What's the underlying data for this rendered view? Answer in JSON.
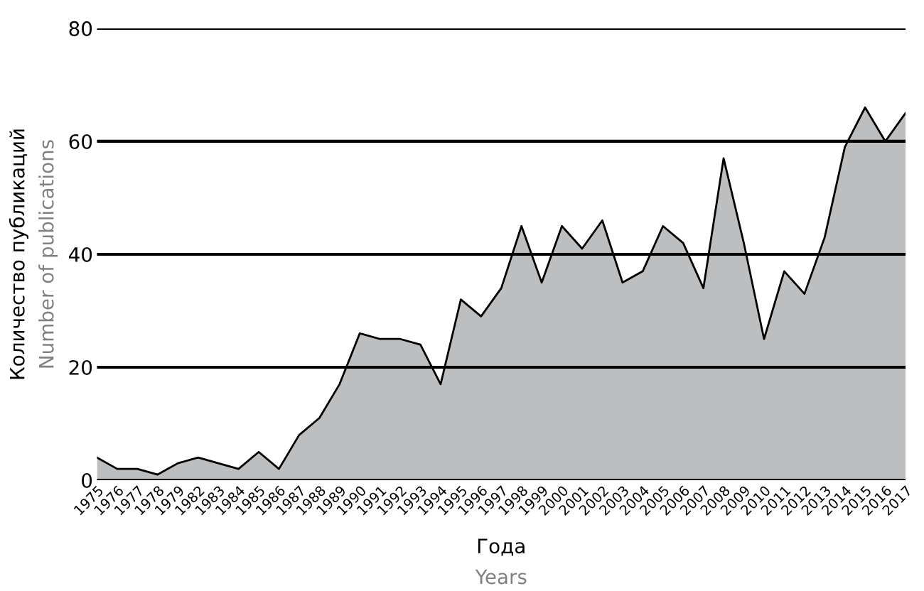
{
  "chart_data": {
    "type": "area",
    "xlabel": "Года",
    "ylabel": "Количество публикаций",
    "annotations": [
      "Number of publications",
      "Years"
    ],
    "categories": [
      "1975",
      "1976",
      "1977",
      "1978",
      "1979",
      "1982",
      "1983",
      "1984",
      "1985",
      "1986",
      "1987",
      "1988",
      "1989",
      "1990",
      "1991",
      "1992",
      "1993",
      "1994",
      "1995",
      "1996",
      "1997",
      "1998",
      "1999",
      "2000",
      "2001",
      "2002",
      "2003",
      "2004",
      "2005",
      "2006",
      "2007",
      "2008",
      "2009",
      "2010",
      "2011",
      "2012",
      "2013",
      "2014",
      "2015",
      "2016",
      "2017"
    ],
    "series": [
      {
        "color": "#bcbec0",
        "values": [
          4,
          2,
          2,
          1,
          3,
          4,
          3,
          2,
          5,
          2,
          8,
          11,
          17,
          26,
          25,
          25,
          24,
          17,
          32,
          29,
          34,
          45,
          35,
          45,
          41,
          46,
          35,
          37,
          45,
          42,
          34,
          57,
          42,
          25,
          37,
          33,
          43,
          59,
          66,
          60,
          65
        ]
      }
    ],
    "ylim": [
      0,
      80
    ],
    "yticks": [
      0,
      20,
      40,
      60,
      80
    ],
    "grid": "y",
    "legend": false
  }
}
